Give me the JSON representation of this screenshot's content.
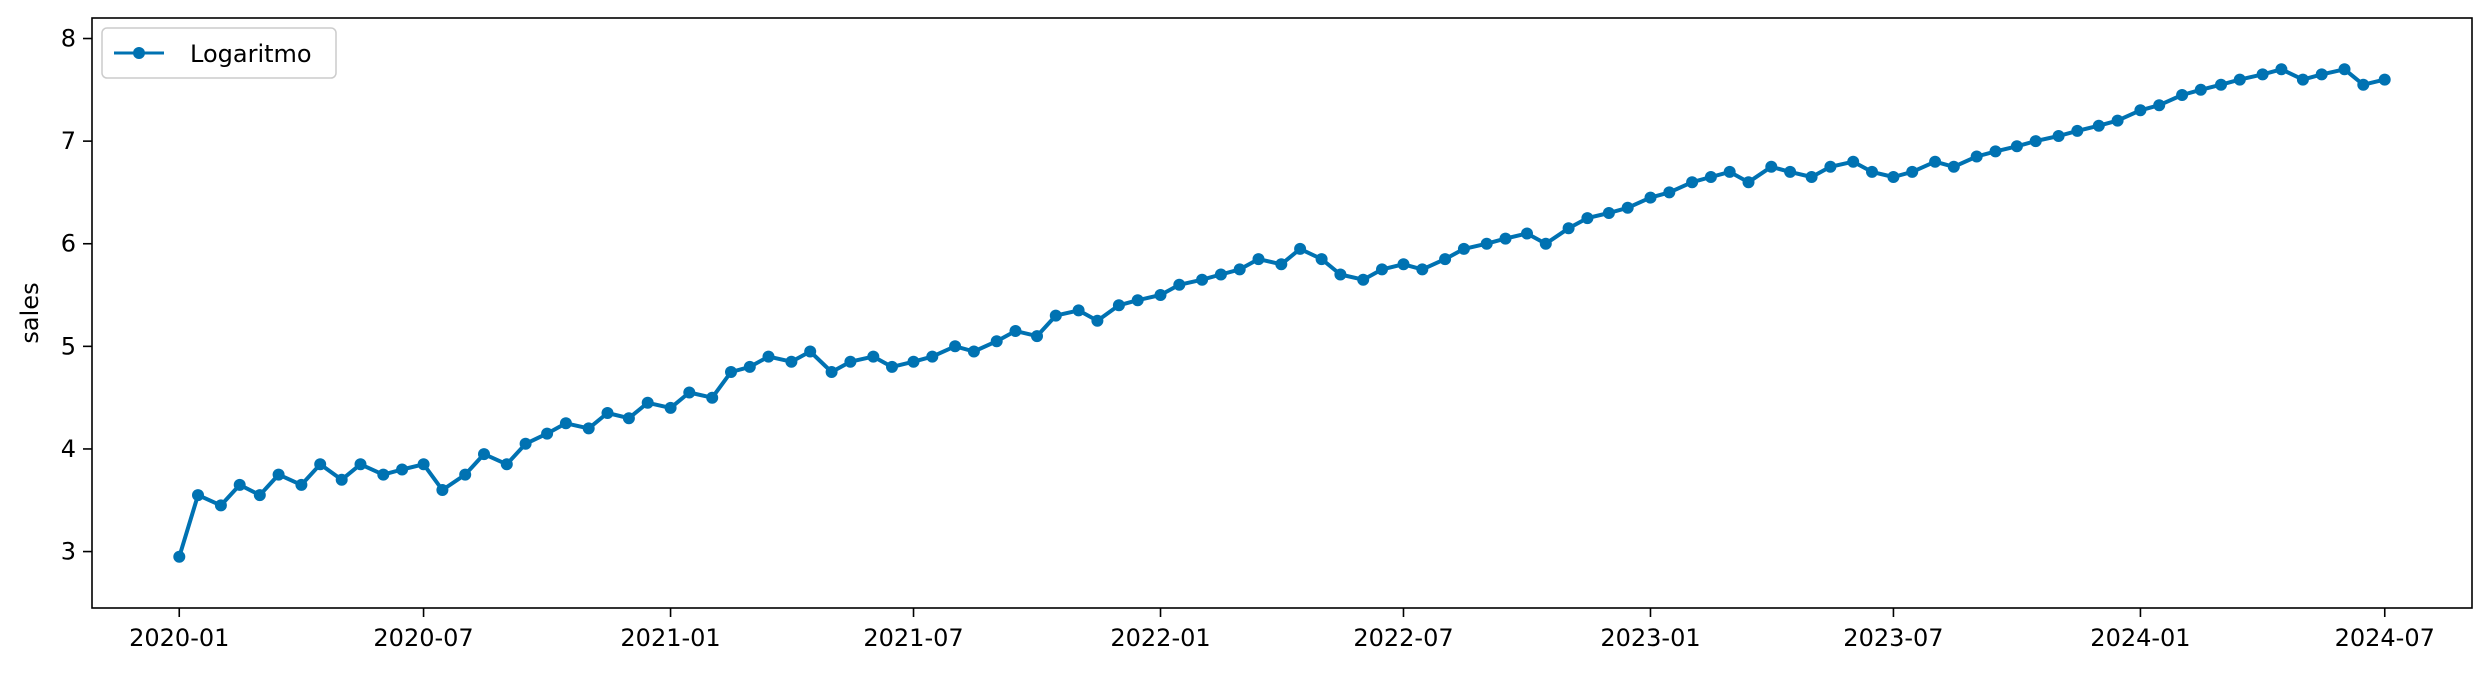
{
  "chart_data": {
    "type": "line",
    "xlabel": "",
    "ylabel": "sales",
    "x_range": [
      "2019-10-28",
      "2024-09-04"
    ],
    "ylim": [
      2.45,
      8.2
    ],
    "x_ticks": [
      {
        "date": "2020-01-01",
        "label": "2020-01"
      },
      {
        "date": "2020-07-01",
        "label": "2020-07"
      },
      {
        "date": "2021-01-01",
        "label": "2021-01"
      },
      {
        "date": "2021-07-01",
        "label": "2021-07"
      },
      {
        "date": "2022-01-01",
        "label": "2022-01"
      },
      {
        "date": "2022-07-01",
        "label": "2022-07"
      },
      {
        "date": "2023-01-01",
        "label": "2023-01"
      },
      {
        "date": "2023-07-01",
        "label": "2023-07"
      },
      {
        "date": "2024-01-01",
        "label": "2024-01"
      },
      {
        "date": "2024-07-01",
        "label": "2024-07"
      }
    ],
    "y_ticks": [
      3,
      4,
      5,
      6,
      7,
      8
    ],
    "grid": false,
    "legend_position": "top-left",
    "series": [
      {
        "name": "Logaritmo",
        "color": "#0072b2",
        "marker": "circle",
        "x": [
          "2020-01-01",
          "2020-01-15",
          "2020-02-01",
          "2020-02-15",
          "2020-03-01",
          "2020-03-15",
          "2020-04-01",
          "2020-04-15",
          "2020-05-01",
          "2020-05-15",
          "2020-06-01",
          "2020-06-15",
          "2020-07-01",
          "2020-07-15",
          "2020-08-01",
          "2020-08-15",
          "2020-09-01",
          "2020-09-15",
          "2020-10-01",
          "2020-10-15",
          "2020-11-01",
          "2020-11-15",
          "2020-12-01",
          "2020-12-15",
          "2021-01-01",
          "2021-01-15",
          "2021-02-01",
          "2021-02-15",
          "2021-03-01",
          "2021-03-15",
          "2021-04-01",
          "2021-04-15",
          "2021-05-01",
          "2021-05-15",
          "2021-06-01",
          "2021-06-15",
          "2021-07-01",
          "2021-07-15",
          "2021-08-01",
          "2021-08-15",
          "2021-09-01",
          "2021-09-15",
          "2021-10-01",
          "2021-10-15",
          "2021-11-01",
          "2021-11-15",
          "2021-12-01",
          "2021-12-15",
          "2022-01-01",
          "2022-01-15",
          "2022-02-01",
          "2022-02-15",
          "2022-03-01",
          "2022-03-15",
          "2022-04-01",
          "2022-04-15",
          "2022-05-01",
          "2022-05-15",
          "2022-06-01",
          "2022-06-15",
          "2022-07-01",
          "2022-07-15",
          "2022-08-01",
          "2022-08-15",
          "2022-09-01",
          "2022-09-15",
          "2022-10-01",
          "2022-10-15",
          "2022-11-01",
          "2022-11-15",
          "2022-12-01",
          "2022-12-15",
          "2023-01-01",
          "2023-01-15",
          "2023-02-01",
          "2023-02-15",
          "2023-03-01",
          "2023-03-15",
          "2023-04-01",
          "2023-04-15",
          "2023-05-01",
          "2023-05-15",
          "2023-06-01",
          "2023-06-15",
          "2023-07-01",
          "2023-07-15",
          "2023-08-01",
          "2023-08-15",
          "2023-09-01",
          "2023-09-15",
          "2023-10-01",
          "2023-10-15",
          "2023-11-01",
          "2023-11-15",
          "2023-12-01",
          "2023-12-15",
          "2024-01-01",
          "2024-01-15",
          "2024-02-01",
          "2024-02-15",
          "2024-03-01",
          "2024-03-15",
          "2024-04-01",
          "2024-04-15",
          "2024-05-01",
          "2024-05-15",
          "2024-06-01",
          "2024-06-15",
          "2024-07-01"
        ],
        "values": [
          2.95,
          3.55,
          3.45,
          3.65,
          3.55,
          3.75,
          3.65,
          3.85,
          3.7,
          3.85,
          3.75,
          3.8,
          3.85,
          3.6,
          3.75,
          3.95,
          3.85,
          4.05,
          4.15,
          4.25,
          4.2,
          4.35,
          4.3,
          4.45,
          4.4,
          4.55,
          4.5,
          4.75,
          4.8,
          4.9,
          4.85,
          4.95,
          4.75,
          4.85,
          4.9,
          4.8,
          4.85,
          4.9,
          5.0,
          4.95,
          5.05,
          5.15,
          5.1,
          5.3,
          5.35,
          5.25,
          5.4,
          5.45,
          5.5,
          5.6,
          5.65,
          5.7,
          5.75,
          5.85,
          5.8,
          5.95,
          5.85,
          5.7,
          5.65,
          5.75,
          5.8,
          5.75,
          5.85,
          5.95,
          6.0,
          6.05,
          6.1,
          6.0,
          6.15,
          6.25,
          6.3,
          6.35,
          6.45,
          6.5,
          6.6,
          6.65,
          6.7,
          6.6,
          6.75,
          6.7,
          6.65,
          6.75,
          6.8,
          6.7,
          6.65,
          6.7,
          6.8,
          6.75,
          6.85,
          6.9,
          6.95,
          7.0,
          7.05,
          7.1,
          7.15,
          7.2,
          7.3,
          7.35,
          7.45,
          7.5,
          7.55,
          7.6,
          7.65,
          7.7,
          7.6,
          7.65,
          7.7,
          7.55,
          7.6
        ]
      }
    ]
  }
}
